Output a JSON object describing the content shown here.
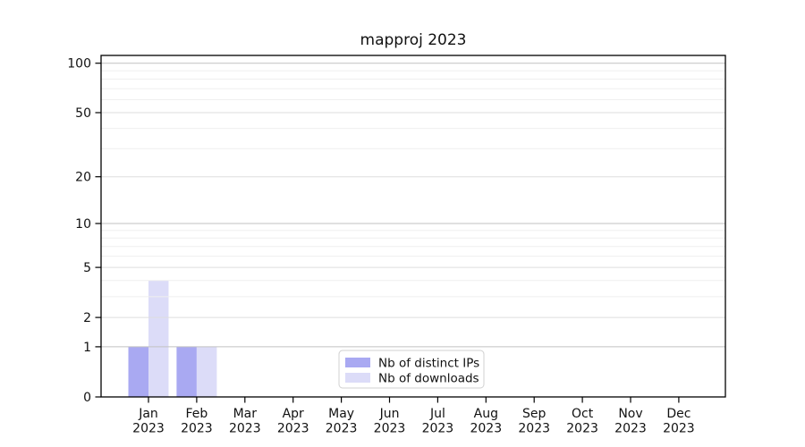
{
  "chart_data": {
    "type": "bar",
    "title": "mapproj 2023",
    "categories": [
      "Jan 2023",
      "Feb 2023",
      "Mar 2023",
      "Apr 2023",
      "May 2023",
      "Jun 2023",
      "Jul 2023",
      "Aug 2023",
      "Sep 2023",
      "Oct 2023",
      "Nov 2023",
      "Dec 2023"
    ],
    "series": [
      {
        "name": "Nb of distinct IPs",
        "color": "#a9a9f2",
        "values": [
          1,
          1,
          0,
          0,
          0,
          0,
          0,
          0,
          0,
          0,
          0,
          0
        ]
      },
      {
        "name": "Nb of downloads",
        "color": "#dcdcf8",
        "values": [
          4,
          1,
          0,
          0,
          0,
          0,
          0,
          0,
          0,
          0,
          0,
          0
        ]
      }
    ],
    "yscale": "log1p",
    "ylim": [
      0,
      111
    ],
    "yticks": [
      0,
      1,
      2,
      5,
      10,
      20,
      50,
      100
    ],
    "grid": "horizontal",
    "legend_position": "lower center"
  }
}
